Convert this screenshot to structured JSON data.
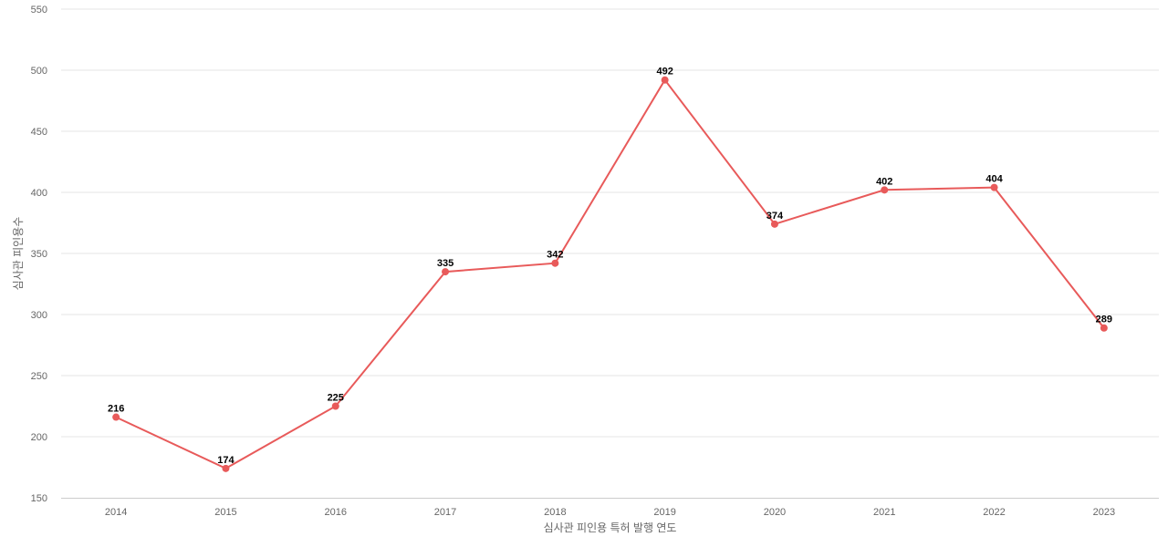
{
  "chart_data": {
    "type": "line",
    "title": "",
    "xlabel": "심사관 피인용 특허 발행 연도",
    "ylabel": "심사관 피인용수",
    "categories": [
      "2014",
      "2015",
      "2016",
      "2017",
      "2018",
      "2019",
      "2020",
      "2021",
      "2022",
      "2023"
    ],
    "series": [
      {
        "values": [
          216,
          174,
          225,
          335,
          342,
          492,
          374,
          402,
          404,
          289
        ],
        "color": "#e85a5a"
      }
    ],
    "ylim": [
      150,
      550
    ],
    "yticks": [
      150,
      200,
      250,
      300,
      350,
      400,
      450,
      500,
      550
    ],
    "grid": true,
    "legend": "none",
    "data_labels": true
  }
}
